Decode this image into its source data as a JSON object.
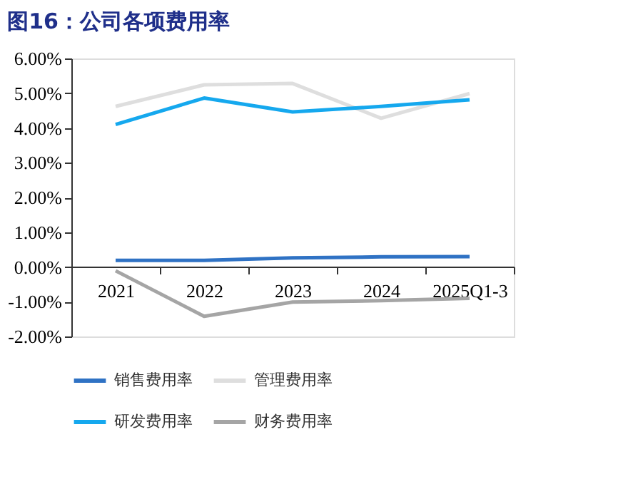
{
  "chart_data": {
    "type": "line",
    "title": "图16：公司各项费用率",
    "categories": [
      "2021",
      "2022",
      "2023",
      "2024",
      "2025Q1-3"
    ],
    "series": [
      {
        "name": "销售费用率",
        "color": "#2f72c4",
        "values": [
          0.19,
          0.19,
          0.26,
          0.29,
          0.3
        ]
      },
      {
        "name": "管理费用率",
        "color": "#dedede",
        "values": [
          4.62,
          5.24,
          5.28,
          4.28,
          4.99
        ]
      },
      {
        "name": "研发费用率",
        "color": "#15a8ee",
        "values": [
          4.1,
          4.86,
          4.46,
          4.62,
          4.81
        ]
      },
      {
        "name": "财务费用率",
        "color": "#a5a5a5",
        "values": [
          -0.11,
          -1.42,
          -1.01,
          -0.97,
          -0.9
        ]
      }
    ],
    "ylim": [
      -2,
      6
    ],
    "yticks": [
      {
        "value": -2,
        "label": "-2.00%"
      },
      {
        "value": -1,
        "label": "-1.00%"
      },
      {
        "value": 0,
        "label": "0.00%"
      },
      {
        "value": 1,
        "label": "1.00%"
      },
      {
        "value": 2,
        "label": "2.00%"
      },
      {
        "value": 3,
        "label": "3.00%"
      },
      {
        "value": 4,
        "label": "4.00%"
      },
      {
        "value": 5,
        "label": "5.00%"
      },
      {
        "value": 6,
        "label": "6.00%"
      }
    ],
    "grid": false,
    "legend": "bottom",
    "marker": "none",
    "line_style": "solid"
  }
}
